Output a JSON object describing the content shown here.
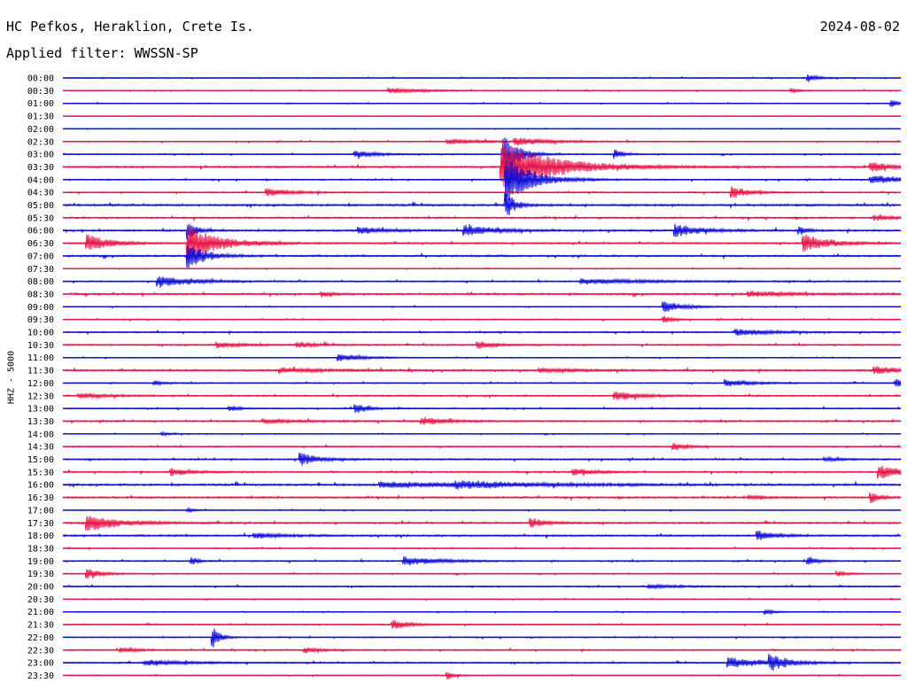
{
  "header": {
    "station": "HC Pefkos, Heraklion, Crete Is.",
    "filter": "Applied filter: WWSSN-SP",
    "date": "2024-08-02"
  },
  "chart_data": {
    "type": "line",
    "title": "HC Pefkos, Heraklion, Crete Is.",
    "subtitle": "Applied filter: WWSSN-SP",
    "date": "2024-08-02",
    "ylabel": "HHZ - 5000",
    "row_colors": [
      "#1010d8",
      "#e8174a"
    ],
    "rows": [
      "00:00",
      "00:30",
      "01:00",
      "01:30",
      "02:00",
      "02:30",
      "03:00",
      "03:30",
      "04:00",
      "04:30",
      "05:00",
      "05:30",
      "06:00",
      "06:30",
      "07:00",
      "07:30",
      "08:00",
      "08:30",
      "09:00",
      "09:30",
      "10:00",
      "10:30",
      "11:00",
      "11:30",
      "12:00",
      "12:30",
      "13:00",
      "13:30",
      "14:00",
      "14:30",
      "15:00",
      "15:30",
      "16:00",
      "16:30",
      "17:00",
      "17:30",
      "18:00",
      "18:30",
      "19:00",
      "19:30",
      "20:00",
      "20:30",
      "21:00",
      "21:30",
      "22:00",
      "22:30",
      "23:00",
      "23:30"
    ],
    "noise_level": [
      0.4,
      0.4,
      0.4,
      0.2,
      0.3,
      0.5,
      0.5,
      0.8,
      0.6,
      0.6,
      0.9,
      0.8,
      0.8,
      0.7,
      0.8,
      0.4,
      0.6,
      0.8,
      0.4,
      0.5,
      0.6,
      0.7,
      0.4,
      0.8,
      0.5,
      0.7,
      0.6,
      0.7,
      0.4,
      0.6,
      0.7,
      0.7,
      0.9,
      0.8,
      0.4,
      0.7,
      0.8,
      0.5,
      0.6,
      0.5,
      0.6,
      0.4,
      0.4,
      0.5,
      0.5,
      0.6,
      0.6,
      0.4
    ],
    "events": [
      {
        "row": 0,
        "t": 0.89,
        "amp": 5,
        "dur": 0.01
      },
      {
        "row": 1,
        "t": 0.39,
        "amp": 3,
        "dur": 0.04
      },
      {
        "row": 1,
        "t": 0.87,
        "amp": 2,
        "dur": 0.01
      },
      {
        "row": 2,
        "t": 0.99,
        "amp": 4,
        "dur": 0.008
      },
      {
        "row": 5,
        "t": 0.46,
        "amp": 3,
        "dur": 0.04
      },
      {
        "row": 5,
        "t": 0.54,
        "amp": 4,
        "dur": 0.04
      },
      {
        "row": 6,
        "t": 0.35,
        "amp": 4,
        "dur": 0.025
      },
      {
        "row": 6,
        "t": 0.528,
        "amp": 26,
        "dur": 0.015
      },
      {
        "row": 6,
        "t": 0.66,
        "amp": 5,
        "dur": 0.01
      },
      {
        "row": 7,
        "t": 0.525,
        "amp": 28,
        "dur": 0.06
      },
      {
        "row": 7,
        "t": 0.965,
        "amp": 5,
        "dur": 0.03
      },
      {
        "row": 8,
        "t": 0.53,
        "amp": 26,
        "dur": 0.03
      },
      {
        "row": 8,
        "t": 0.965,
        "amp": 5,
        "dur": 0.04
      },
      {
        "row": 9,
        "t": 0.245,
        "amp": 4,
        "dur": 0.03
      },
      {
        "row": 9,
        "t": 0.8,
        "amp": 6,
        "dur": 0.02
      },
      {
        "row": 10,
        "t": 0.53,
        "amp": 14,
        "dur": 0.01
      },
      {
        "row": 11,
        "t": 0.97,
        "amp": 3,
        "dur": 0.02
      },
      {
        "row": 12,
        "t": 0.15,
        "amp": 10,
        "dur": 0.01
      },
      {
        "row": 12,
        "t": 0.355,
        "amp": 4,
        "dur": 0.03
      },
      {
        "row": 12,
        "t": 0.48,
        "amp": 6,
        "dur": 0.035
      },
      {
        "row": 12,
        "t": 0.732,
        "amp": 7,
        "dur": 0.03
      },
      {
        "row": 12,
        "t": 0.88,
        "amp": 4,
        "dur": 0.01
      },
      {
        "row": 13,
        "t": 0.03,
        "amp": 10,
        "dur": 0.025
      },
      {
        "row": 13,
        "t": 0.15,
        "amp": 20,
        "dur": 0.035
      },
      {
        "row": 13,
        "t": 0.885,
        "amp": 10,
        "dur": 0.03
      },
      {
        "row": 14,
        "t": 0.15,
        "amp": 14,
        "dur": 0.02
      },
      {
        "row": 16,
        "t": 0.115,
        "amp": 6,
        "dur": 0.04
      },
      {
        "row": 16,
        "t": 0.62,
        "amp": 3,
        "dur": 0.08
      },
      {
        "row": 17,
        "t": 0.31,
        "amp": 3,
        "dur": 0.01
      },
      {
        "row": 17,
        "t": 0.82,
        "amp": 3,
        "dur": 0.05
      },
      {
        "row": 18,
        "t": 0.718,
        "amp": 6,
        "dur": 0.025
      },
      {
        "row": 19,
        "t": 0.718,
        "amp": 4,
        "dur": 0.01
      },
      {
        "row": 20,
        "t": 0.805,
        "amp": 4,
        "dur": 0.04
      },
      {
        "row": 21,
        "t": 0.185,
        "amp": 3,
        "dur": 0.03
      },
      {
        "row": 21,
        "t": 0.28,
        "amp": 3,
        "dur": 0.02
      },
      {
        "row": 21,
        "t": 0.496,
        "amp": 4,
        "dur": 0.02
      },
      {
        "row": 22,
        "t": 0.33,
        "amp": 4,
        "dur": 0.03
      },
      {
        "row": 23,
        "t": 0.26,
        "amp": 3,
        "dur": 0.05
      },
      {
        "row": 23,
        "t": 0.57,
        "amp": 2,
        "dur": 0.05
      },
      {
        "row": 23,
        "t": 0.97,
        "amp": 4,
        "dur": 0.04
      },
      {
        "row": 24,
        "t": 0.11,
        "amp": 3,
        "dur": 0.008
      },
      {
        "row": 24,
        "t": 0.792,
        "amp": 4,
        "dur": 0.03
      },
      {
        "row": 24,
        "t": 0.995,
        "amp": 5,
        "dur": 0.01
      },
      {
        "row": 25,
        "t": 0.02,
        "amp": 3,
        "dur": 0.03
      },
      {
        "row": 25,
        "t": 0.66,
        "amp": 5,
        "dur": 0.03
      },
      {
        "row": 26,
        "t": 0.2,
        "amp": 3,
        "dur": 0.01
      },
      {
        "row": 26,
        "t": 0.35,
        "amp": 5,
        "dur": 0.015
      },
      {
        "row": 27,
        "t": 0.24,
        "amp": 2,
        "dur": 0.05
      },
      {
        "row": 27,
        "t": 0.43,
        "amp": 4,
        "dur": 0.03
      },
      {
        "row": 28,
        "t": 0.12,
        "amp": 2,
        "dur": 0.01
      },
      {
        "row": 29,
        "t": 0.73,
        "amp": 4,
        "dur": 0.015
      },
      {
        "row": 30,
        "t": 0.285,
        "amp": 7,
        "dur": 0.02
      },
      {
        "row": 30,
        "t": 0.91,
        "amp": 2,
        "dur": 0.02
      },
      {
        "row": 31,
        "t": 0.13,
        "amp": 4,
        "dur": 0.025
      },
      {
        "row": 31,
        "t": 0.61,
        "amp": 4,
        "dur": 0.025
      },
      {
        "row": 31,
        "t": 0.975,
        "amp": 8,
        "dur": 0.025
      },
      {
        "row": 32,
        "t": 0.38,
        "amp": 3,
        "dur": 0.14
      },
      {
        "row": 32,
        "t": 0.47,
        "amp": 3,
        "dur": 0.08
      },
      {
        "row": 33,
        "t": 0.82,
        "amp": 2,
        "dur": 0.02
      },
      {
        "row": 33,
        "t": 0.965,
        "amp": 6,
        "dur": 0.01
      },
      {
        "row": 34,
        "t": 0.15,
        "amp": 2,
        "dur": 0.01
      },
      {
        "row": 35,
        "t": 0.03,
        "amp": 9,
        "dur": 0.04
      },
      {
        "row": 35,
        "t": 0.56,
        "amp": 5,
        "dur": 0.02
      },
      {
        "row": 36,
        "t": 0.23,
        "amp": 3,
        "dur": 0.03
      },
      {
        "row": 36,
        "t": 0.83,
        "amp": 5,
        "dur": 0.02
      },
      {
        "row": 38,
        "t": 0.155,
        "amp": 4,
        "dur": 0.008
      },
      {
        "row": 38,
        "t": 0.408,
        "amp": 5,
        "dur": 0.04
      },
      {
        "row": 38,
        "t": 0.89,
        "amp": 5,
        "dur": 0.01
      },
      {
        "row": 39,
        "t": 0.03,
        "amp": 6,
        "dur": 0.015
      },
      {
        "row": 39,
        "t": 0.925,
        "amp": 3,
        "dur": 0.01
      },
      {
        "row": 40,
        "t": 0.7,
        "amp": 2,
        "dur": 0.04
      },
      {
        "row": 42,
        "t": 0.84,
        "amp": 3,
        "dur": 0.01
      },
      {
        "row": 43,
        "t": 0.395,
        "amp": 5,
        "dur": 0.02
      },
      {
        "row": 44,
        "t": 0.18,
        "amp": 12,
        "dur": 0.008
      },
      {
        "row": 45,
        "t": 0.07,
        "amp": 3,
        "dur": 0.02
      },
      {
        "row": 45,
        "t": 0.29,
        "amp": 3,
        "dur": 0.02
      },
      {
        "row": 46,
        "t": 0.1,
        "amp": 3,
        "dur": 0.05
      },
      {
        "row": 46,
        "t": 0.795,
        "amp": 6,
        "dur": 0.04
      },
      {
        "row": 46,
        "t": 0.845,
        "amp": 8,
        "dur": 0.02
      },
      {
        "row": 47,
        "t": 0.46,
        "amp": 4,
        "dur": 0.008
      }
    ]
  }
}
